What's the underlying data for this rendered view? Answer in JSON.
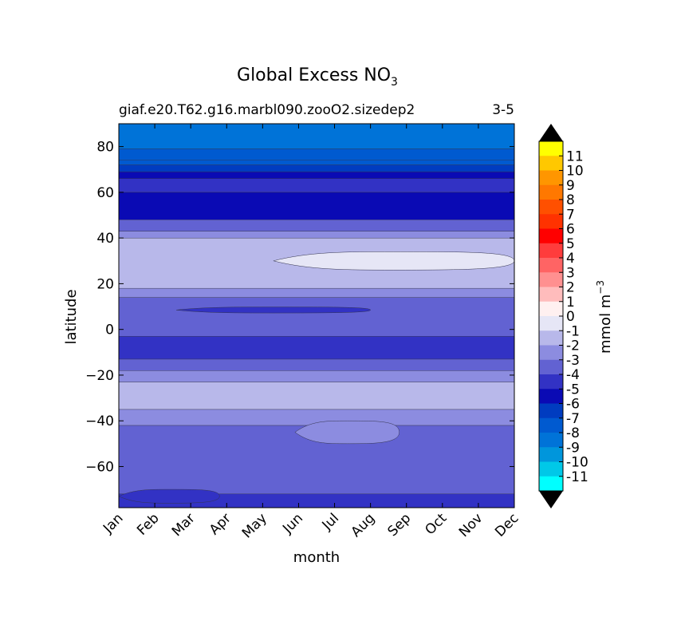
{
  "chart_data": {
    "type": "contour",
    "title_main": "Global Excess NO",
    "title_sub": "3",
    "subtitle_left": "giaf.e20.T62.g16.marbl090.zooO2.sizedep2",
    "subtitle_right": "3-5",
    "xlabel": "month",
    "ylabel": "latitude",
    "x_ticks": [
      "Jan",
      "Feb",
      "Mar",
      "Apr",
      "May",
      "Jun",
      "Jul",
      "Aug",
      "Sep",
      "Oct",
      "Nov",
      "Dec"
    ],
    "y_ticks": [
      80,
      60,
      40,
      20,
      0,
      -20,
      -40,
      -60
    ],
    "y_tick_labels": [
      "80",
      "60",
      "40",
      "20",
      "0",
      "−20",
      "−40",
      "−60"
    ],
    "xlim": [
      0,
      11
    ],
    "ylim": [
      -78,
      90
    ],
    "colorbar": {
      "label_main": "mmol m",
      "label_sup": "−3",
      "levels": [
        -12,
        -11,
        -10,
        -9,
        -8,
        -7,
        -6,
        -5,
        -4,
        -3,
        -2,
        -1,
        0,
        1,
        2,
        3,
        4,
        5,
        6,
        7,
        8,
        9,
        10,
        11,
        12
      ],
      "tick_values": [
        11,
        10,
        9,
        8,
        7,
        6,
        5,
        4,
        3,
        2,
        1,
        0,
        -1,
        -2,
        -3,
        -4,
        -5,
        -6,
        -7,
        -8,
        -9,
        -10,
        -11
      ],
      "tick_labels": [
        "11",
        "10",
        "9",
        "8",
        "7",
        "6",
        "5",
        "4",
        "3",
        "2",
        "1",
        "0",
        "-1",
        "-2",
        "-3",
        "-4",
        "-5",
        "-6",
        "-7",
        "-8",
        "-9",
        "-10",
        "-11"
      ],
      "colors": [
        "#00ffff",
        "#00c8e8",
        "#0096dc",
        "#0073d8",
        "#005ad0",
        "#003cc0",
        "#0a0ab4",
        "#3232c4",
        "#6262d2",
        "#8c8ce0",
        "#b8b8ea",
        "#e6e6f6",
        "#fff0f0",
        "#ffbcbc",
        "#ff9090",
        "#ff6464",
        "#ff3c3c",
        "#ff0000",
        "#ff3200",
        "#ff5000",
        "#ff7800",
        "#ff9600",
        "#ffc800",
        "#ffff00"
      ],
      "under_color": "#000000",
      "over_color": "#000000"
    },
    "bands": [
      {
        "from": -78,
        "to": -72,
        "value": -4.5
      },
      {
        "from": -72,
        "to": -42,
        "value": -3.5
      },
      {
        "from": -42,
        "to": -35,
        "value": -2.5
      },
      {
        "from": -35,
        "to": -23,
        "value": -1.5
      },
      {
        "from": -23,
        "to": -18,
        "value": -2.5
      },
      {
        "from": -18,
        "to": -13,
        "value": -3.5
      },
      {
        "from": -13,
        "to": -3,
        "value": -4.5
      },
      {
        "from": -3,
        "to": 14,
        "value": -3.5
      },
      {
        "from": 14,
        "to": 18,
        "value": -2.5
      },
      {
        "from": 18,
        "to": 40,
        "value": -1.5
      },
      {
        "from": 40,
        "to": 43,
        "value": -2.5
      },
      {
        "from": 43,
        "to": 48,
        "value": -3.5
      },
      {
        "from": 48,
        "to": 60,
        "value": -5.5
      },
      {
        "from": 60,
        "to": 66,
        "value": -4.5
      },
      {
        "from": 66,
        "to": 69,
        "value": -5.5
      },
      {
        "from": 69,
        "to": 72,
        "value": -6.5
      },
      {
        "from": 72,
        "to": 74,
        "value": -7.5
      },
      {
        "from": 74,
        "to": 79,
        "value": -7.5
      },
      {
        "from": 79,
        "to": 90,
        "value": -8.5
      }
    ],
    "blobs": [
      {
        "name": "north-subtropical-min",
        "value": -0.5,
        "lat_center": 30,
        "lat_halfwidth": 4,
        "month_start": 4.3,
        "month_end": 11
      },
      {
        "name": "equatorial-band",
        "value": -4.5,
        "lat_center": 8.5,
        "lat_halfwidth": 1.3,
        "month_start": 1.6,
        "month_end": 7
      },
      {
        "name": "southern-tongue",
        "value": -2.5,
        "lat_center": -45,
        "lat_halfwidth": 5,
        "month_start": 4.9,
        "month_end": 7.8
      },
      {
        "name": "antarctic-patch",
        "value": -4.5,
        "lat_center": -73,
        "lat_halfwidth": 3,
        "month_start": 0,
        "month_end": 2.8
      }
    ]
  }
}
